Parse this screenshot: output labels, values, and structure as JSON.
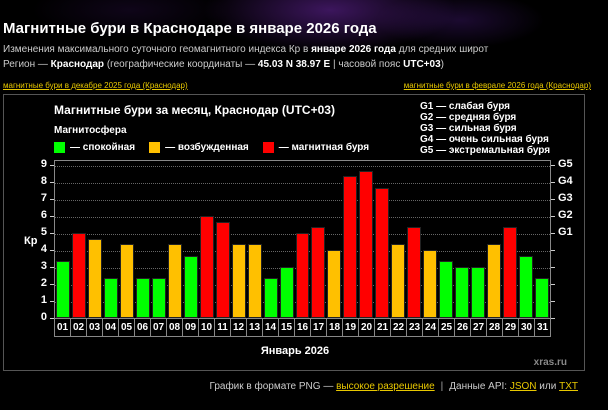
{
  "header": {
    "title": "Магнитные бури в Краснодаре в январе 2026 года",
    "line1_prefix": "Изменения максимального суточного геомагнитного индекса Кр в ",
    "line1_bold": "январе 2026 года",
    "line1_suffix": " для средних широт",
    "line2_prefix": "Регион — ",
    "line2_region": "Краснодар",
    "line2_mid": " (географические координаты — ",
    "line2_coords": "45.03 N 38.97 E",
    "line2_tz_prefix": " | часовой пояс ",
    "line2_tz": "UTC+03",
    "line2_suffix": ")"
  },
  "nav": {
    "prev": "магнитные бури в декабре 2025 года (Краснодар)",
    "next": "магнитные бури в феврале 2026 года (Краснодар)"
  },
  "chart_ui": {
    "title": "Магнитные бури за месяц, Краснодар (UTC+03)",
    "legend_heading": "Магнитосфера",
    "legend": [
      {
        "label": "— спокойная",
        "color": "#00ff00"
      },
      {
        "label": "— возбужденная",
        "color": "#ffc000"
      },
      {
        "label": "— магнитная буря",
        "color": "#ff0000"
      }
    ],
    "g_legend": [
      "G1 — слабая буря",
      "G2 — средняя буря",
      "G3 — сильная буря",
      "G4 — очень сильная буря",
      "G5 — экстремальная буря"
    ],
    "ylabel": "Кр",
    "xlabel": "Январь 2026",
    "watermark": "xras.ru"
  },
  "chart_data": {
    "type": "bar",
    "title": "Магнитные бури за месяц, Краснодар (UTC+03)",
    "xlabel": "Январь 2026",
    "ylabel": "Кр",
    "ylim": [
      0,
      9
    ],
    "yticks": [
      0,
      1,
      2,
      3,
      4,
      5,
      6,
      7,
      8,
      9
    ],
    "right_axis_ticks": [
      {
        "value": 5,
        "label": "G1"
      },
      {
        "value": 6,
        "label": "G2"
      },
      {
        "value": 7,
        "label": "G3"
      },
      {
        "value": 8,
        "label": "G4"
      },
      {
        "value": 9,
        "label": "G5"
      }
    ],
    "grid": true,
    "categories": [
      "01",
      "02",
      "03",
      "04",
      "05",
      "06",
      "07",
      "08",
      "09",
      "10",
      "11",
      "12",
      "13",
      "14",
      "15",
      "16",
      "17",
      "18",
      "19",
      "20",
      "21",
      "22",
      "23",
      "24",
      "25",
      "26",
      "27",
      "28",
      "29",
      "30",
      "31"
    ],
    "values": [
      3.33,
      5.0,
      4.67,
      2.33,
      4.33,
      2.33,
      2.33,
      4.33,
      3.67,
      6.0,
      5.67,
      4.33,
      4.33,
      2.33,
      3.0,
      5.0,
      5.33,
      4.0,
      8.33,
      8.67,
      7.67,
      4.33,
      5.33,
      4.0,
      3.33,
      3.0,
      3.0,
      4.33,
      5.33,
      3.67,
      2.33
    ],
    "status": [
      "quiet",
      "storm",
      "active",
      "quiet",
      "active",
      "quiet",
      "quiet",
      "active",
      "quiet",
      "storm",
      "storm",
      "active",
      "active",
      "quiet",
      "quiet",
      "storm",
      "storm",
      "active",
      "storm",
      "storm",
      "storm",
      "active",
      "storm",
      "active",
      "quiet",
      "quiet",
      "quiet",
      "active",
      "storm",
      "quiet",
      "quiet"
    ],
    "legend": [
      {
        "key": "quiet",
        "label": "спокойная",
        "color": "#00ff00"
      },
      {
        "key": "active",
        "label": "возбужденная",
        "color": "#ffc000"
      },
      {
        "key": "storm",
        "label": "магнитная буря",
        "color": "#ff0000"
      }
    ]
  },
  "footer": {
    "png_prefix": "График в формате PNG — ",
    "png_link": "высокое разрешение",
    "separator": "|",
    "api_prefix": "Данные API: ",
    "json_link": "JSON",
    "or": " или ",
    "txt_link": "TXT"
  }
}
